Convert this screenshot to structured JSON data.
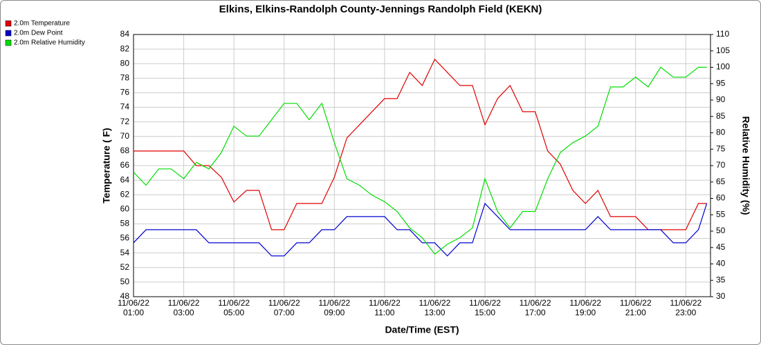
{
  "chart_data": {
    "type": "line",
    "title": "Elkins, Elkins-Randolph County-Jennings Randolph Field (KEKN)",
    "x_label": "Date/Time (EST)",
    "y_label": "Temperature ( F)",
    "y2_label": "Relative Humidity (%)",
    "grid": true,
    "legend": "top-left",
    "x": [
      "2022-11-06 01:00",
      "2022-11-06 01:30",
      "2022-11-06 02:00",
      "2022-11-06 02:30",
      "2022-11-06 03:00",
      "2022-11-06 03:30",
      "2022-11-06 04:00",
      "2022-11-06 04:30",
      "2022-11-06 05:00",
      "2022-11-06 05:30",
      "2022-11-06 06:00",
      "2022-11-06 06:30",
      "2022-11-06 07:00",
      "2022-11-06 07:30",
      "2022-11-06 08:00",
      "2022-11-06 08:30",
      "2022-11-06 09:00",
      "2022-11-06 09:30",
      "2022-11-06 10:00",
      "2022-11-06 10:30",
      "2022-11-06 11:00",
      "2022-11-06 11:30",
      "2022-11-06 12:00",
      "2022-11-06 12:30",
      "2022-11-06 13:00",
      "2022-11-06 13:30",
      "2022-11-06 14:00",
      "2022-11-06 14:30",
      "2022-11-06 15:00",
      "2022-11-06 15:30",
      "2022-11-06 16:00",
      "2022-11-06 16:30",
      "2022-11-06 17:00",
      "2022-11-06 17:30",
      "2022-11-06 18:00",
      "2022-11-06 18:30",
      "2022-11-06 19:00",
      "2022-11-06 19:30",
      "2022-11-06 20:00",
      "2022-11-06 20:30",
      "2022-11-06 21:00",
      "2022-11-06 21:30",
      "2022-11-06 22:00",
      "2022-11-06 22:30",
      "2022-11-06 23:00",
      "2022-11-06 23:30",
      "2022-11-06 23:50"
    ],
    "xlim": [
      "2022-11-06 01:00",
      "2022-11-06 23:59"
    ],
    "xticks": [
      {
        "value": "2022-11-06 01:00",
        "label": "11/06/22 01:00"
      },
      {
        "value": "2022-11-06 03:00",
        "label": "11/06/22 03:00"
      },
      {
        "value": "2022-11-06 05:00",
        "label": "11/06/22 05:00"
      },
      {
        "value": "2022-11-06 07:00",
        "label": "11/06/22 07:00"
      },
      {
        "value": "2022-11-06 09:00",
        "label": "11/06/22 09:00"
      },
      {
        "value": "2022-11-06 11:00",
        "label": "11/06/22 11:00"
      },
      {
        "value": "2022-11-06 13:00",
        "label": "11/06/22 13:00"
      },
      {
        "value": "2022-11-06 15:00",
        "label": "11/06/22 15:00"
      },
      {
        "value": "2022-11-06 17:00",
        "label": "11/06/22 17:00"
      },
      {
        "value": "2022-11-06 19:00",
        "label": "11/06/22 19:00"
      },
      {
        "value": "2022-11-06 21:00",
        "label": "11/06/22 21:00"
      },
      {
        "value": "2022-11-06 23:00",
        "label": "11/06/22 23:00"
      }
    ],
    "ylim": [
      48,
      84
    ],
    "yticks": [
      48,
      50,
      52,
      54,
      56,
      58,
      60,
      62,
      64,
      66,
      68,
      70,
      72,
      74,
      76,
      78,
      80,
      82,
      84
    ],
    "y2lim": [
      30,
      110
    ],
    "y2ticks": [
      30,
      35,
      40,
      45,
      50,
      55,
      60,
      65,
      70,
      75,
      80,
      85,
      90,
      95,
      100,
      105,
      110
    ],
    "series": [
      {
        "name": "2.0m Temperature",
        "color": "#e00000",
        "values": [
          68,
          68,
          68,
          68,
          68,
          66,
          66,
          64.4,
          61,
          62.6,
          62.6,
          57.2,
          57.2,
          60.8,
          60.8,
          60.8,
          64.4,
          69.8,
          71.6,
          73.4,
          75.2,
          75.2,
          78.8,
          77,
          80.6,
          78.8,
          77,
          77,
          71.6,
          75.2,
          77,
          73.4,
          73.4,
          68,
          66.2,
          62.6,
          60.8,
          62.6,
          59,
          59,
          59,
          57.2,
          57.2,
          57.2,
          57.2,
          60.8,
          60.8
        ]
      },
      {
        "name": "2.0m Dew Point",
        "color": "#0000d0",
        "values": [
          55.4,
          57.2,
          57.2,
          57.2,
          57.2,
          57.2,
          55.4,
          55.4,
          55.4,
          55.4,
          55.4,
          53.6,
          53.6,
          55.4,
          55.4,
          57.2,
          57.2,
          59,
          59,
          59,
          59,
          57.2,
          57.2,
          55.4,
          55.4,
          53.6,
          55.4,
          55.4,
          60.8,
          59,
          57.2,
          57.2,
          57.2,
          57.2,
          57.2,
          57.2,
          57.2,
          59,
          57.2,
          57.2,
          57.2,
          57.2,
          57.2,
          55.4,
          55.4,
          57.2,
          60.8
        ]
      },
      {
        "name": "2.0m Relative Humidity",
        "color": "#00dd00",
        "axis": "y2",
        "values": [
          68,
          64,
          69,
          69,
          66,
          71,
          69,
          74,
          82,
          79,
          79,
          84,
          89,
          89,
          84,
          89,
          77,
          66,
          64,
          61,
          59,
          56,
          51,
          48,
          43,
          46,
          48,
          51,
          66,
          56,
          51,
          56,
          56,
          66,
          74,
          77,
          79,
          82,
          94,
          94,
          97,
          94,
          100,
          97,
          97,
          100,
          100
        ]
      }
    ]
  }
}
